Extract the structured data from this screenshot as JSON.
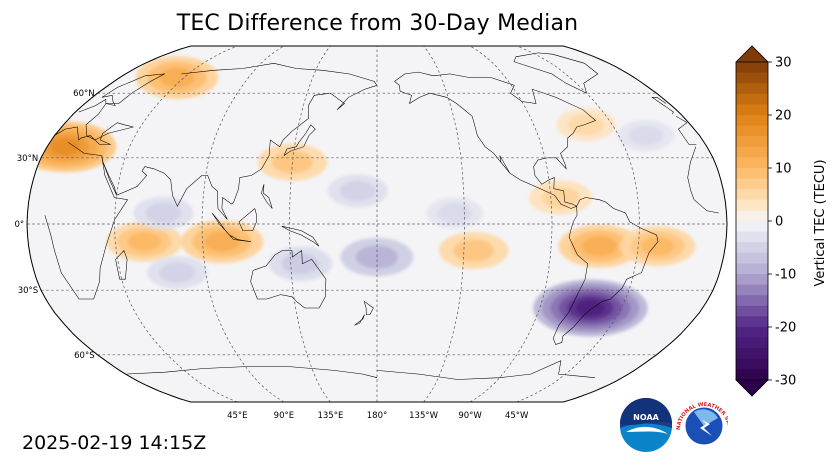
{
  "title": "TEC Difference from 30-Day Median",
  "timestamp": "2025-02-19 14:15Z",
  "map": {
    "projection": "Robinson",
    "central_longitude": 180,
    "lat_labels": [
      "60°N",
      "30°N",
      "0°",
      "30°S",
      "60°S"
    ],
    "lon_labels": [
      "45°E",
      "90°E",
      "135°E",
      "180°",
      "135°W",
      "90°W",
      "45°W"
    ],
    "background_color": "#f4f4f6",
    "graticule_color": "#555555"
  },
  "colorbar": {
    "label": "Vertical TEC (TECU)",
    "min": -30,
    "max": 30,
    "ticks": [
      "30",
      "20",
      "10",
      "0",
      "-10",
      "-20",
      "-30"
    ],
    "colormap": "PuOr_r",
    "extend": "both"
  },
  "anomalies": [
    {
      "region": "Europe/North Africa",
      "lat": 35,
      "lon": 10,
      "value": 18
    },
    {
      "region": "Northern Russia",
      "lat": 68,
      "lon": 40,
      "value": 12
    },
    {
      "region": "East Asia",
      "lat": 28,
      "lon": 135,
      "value": 8
    },
    {
      "region": "Indian Ocean equatorial",
      "lat": -8,
      "lon": 60,
      "value": 10
    },
    {
      "region": "Indonesia",
      "lat": -8,
      "lon": 100,
      "value": 12
    },
    {
      "region": "Eastern Pacific equatorial",
      "lat": -12,
      "lon": -130,
      "value": 8
    },
    {
      "region": "South America north",
      "lat": -10,
      "lon": -65,
      "value": 12
    },
    {
      "region": "South Atlantic west",
      "lat": -10,
      "lon": -35,
      "value": 10
    },
    {
      "region": "Central America",
      "lat": 12,
      "lon": -85,
      "value": 6
    },
    {
      "region": "Canada east",
      "lat": 45,
      "lon": -60,
      "value": 5
    },
    {
      "region": "Southern South America",
      "lat": -38,
      "lon": -62,
      "value": -22
    },
    {
      "region": "Australia",
      "lat": -18,
      "lon": 140,
      "value": -6
    },
    {
      "region": "Central Pacific south",
      "lat": -15,
      "lon": 180,
      "value": -9
    },
    {
      "region": "Indian Ocean south",
      "lat": -22,
      "lon": 75,
      "value": -5
    },
    {
      "region": "Indian Ocean north",
      "lat": 5,
      "lon": 70,
      "value": -5
    },
    {
      "region": "North Pacific",
      "lat": 15,
      "lon": 170,
      "value": -5
    },
    {
      "region": "North Pacific east",
      "lat": 5,
      "lon": -140,
      "value": -4
    },
    {
      "region": "North Atlantic",
      "lat": 40,
      "lon": -30,
      "value": -4
    }
  ],
  "logos": [
    {
      "name": "noaa-logo",
      "text": "NOAA"
    },
    {
      "name": "nws-logo",
      "text": "NATIONAL WEATHER SERVICE"
    }
  ]
}
